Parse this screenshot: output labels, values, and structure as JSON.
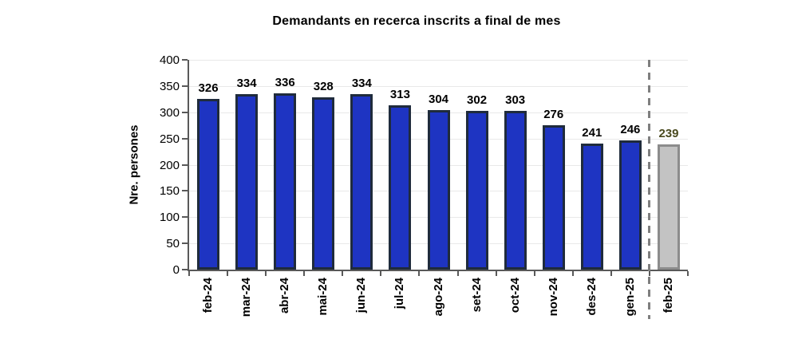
{
  "chart_data": {
    "type": "bar",
    "title": "Demandants en recerca inscrits  a final de mes",
    "xlabel": "",
    "ylabel": "Nre. persones",
    "categories": [
      "feb-24",
      "mar-24",
      "abr-24",
      "mai-24",
      "jun-24",
      "jul-24",
      "ago-24",
      "set-24",
      "oct-24",
      "nov-24",
      "des-24",
      "gen-25",
      "feb-25"
    ],
    "values": [
      326,
      334,
      336,
      328,
      334,
      313,
      304,
      302,
      303,
      276,
      241,
      246,
      239
    ],
    "ylim": [
      0,
      400
    ],
    "ytick_step": 50,
    "grid": "horizontal-faint",
    "legend": "none",
    "highlight_last_bar": true,
    "separator_before_category": "feb-25",
    "colors": {
      "bar_fill": "#1E34C2",
      "bar_border": "#1F2B3C",
      "highlight_bar_fill": "#C3C3C3",
      "highlight_bar_border": "#8C8C8C",
      "highlight_value_label": "#4A4A1E",
      "value_label": "#000000",
      "axis": "#595959",
      "grid_line": "#E9E9E9",
      "separator": "#7F7F7F",
      "background": "#FFFFFF"
    }
  }
}
